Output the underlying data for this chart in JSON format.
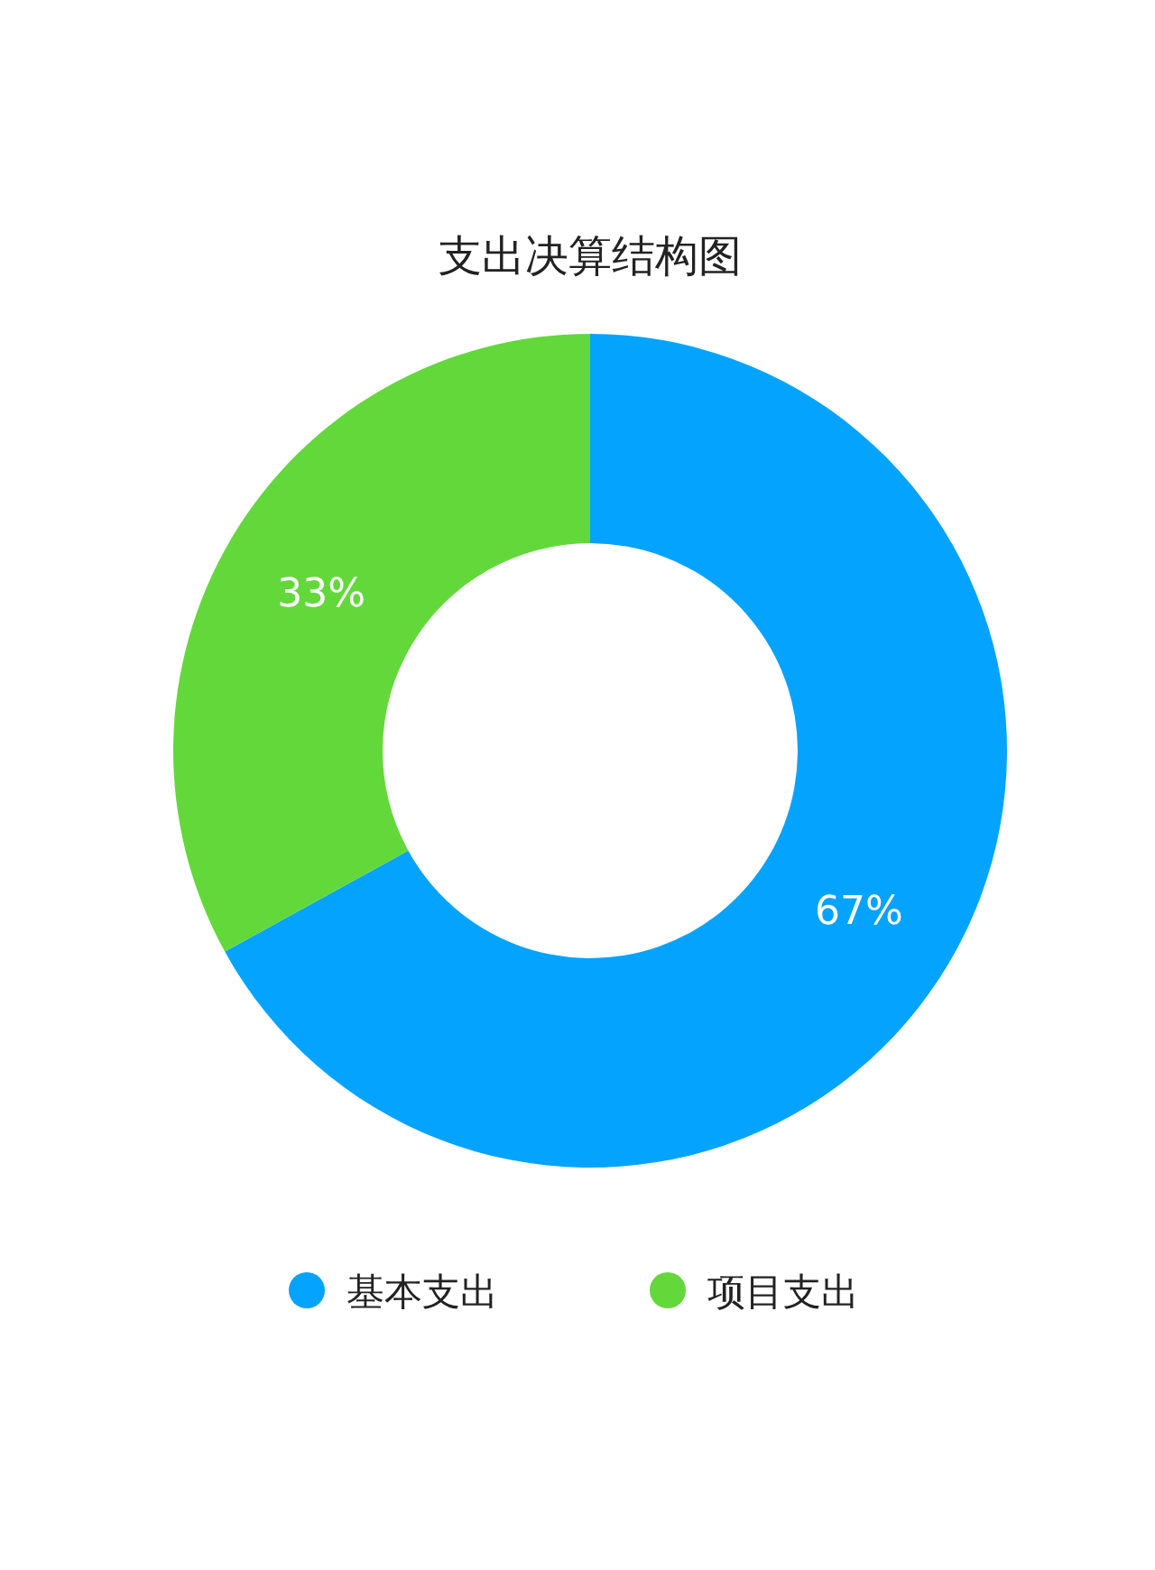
{
  "chart_data": {
    "type": "donut",
    "title": "支出决算结构图",
    "categories": [
      "基本支出",
      "项目支出"
    ],
    "values": [
      67,
      33
    ],
    "colors": [
      "#04a3fe",
      "#63d83b"
    ],
    "value_labels": [
      "67%",
      "33%"
    ],
    "legend": "bottom"
  }
}
